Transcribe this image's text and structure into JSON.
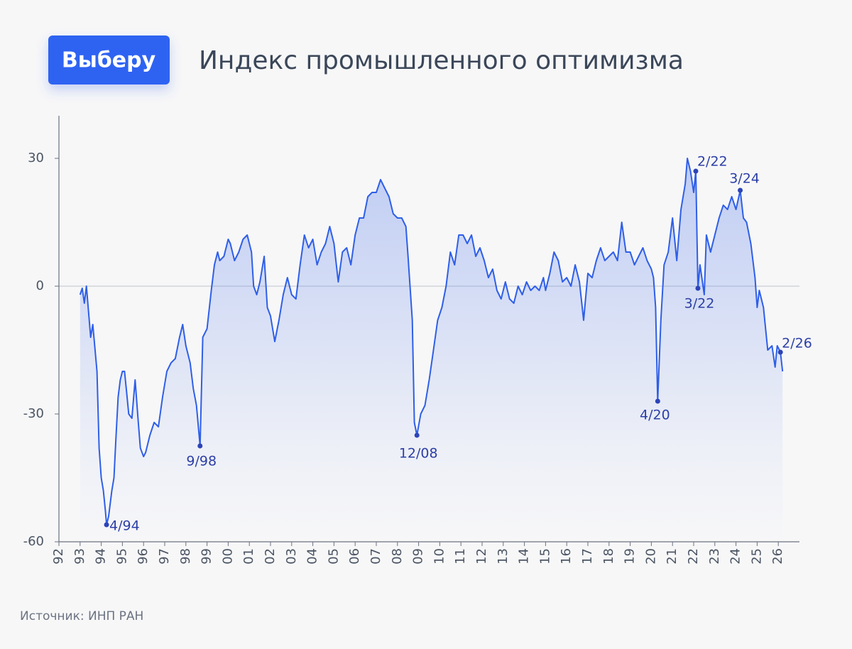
{
  "brand": "Выберу",
  "source": "Источник: ИНП РАН",
  "chart_data": {
    "type": "line",
    "title": "Индекс промышленного оптимизма",
    "color": "#2f5fe8",
    "grid_zero": true,
    "xlim": [
      1992,
      2027
    ],
    "ylim": [
      -60,
      40
    ],
    "yticks": [
      -60,
      -30,
      0,
      30
    ],
    "xticks": [
      {
        "value": 1992,
        "label": "92"
      },
      {
        "value": 1993,
        "label": "93"
      },
      {
        "value": 1994,
        "label": "94"
      },
      {
        "value": 1995,
        "label": "95"
      },
      {
        "value": 1996,
        "label": "96"
      },
      {
        "value": 1997,
        "label": "97"
      },
      {
        "value": 1998,
        "label": "98"
      },
      {
        "value": 1999,
        "label": "99"
      },
      {
        "value": 2000,
        "label": "00"
      },
      {
        "value": 2001,
        "label": "01"
      },
      {
        "value": 2002,
        "label": "02"
      },
      {
        "value": 2003,
        "label": "03"
      },
      {
        "value": 2004,
        "label": "04"
      },
      {
        "value": 2005,
        "label": "05"
      },
      {
        "value": 2006,
        "label": "06"
      },
      {
        "value": 2007,
        "label": "07"
      },
      {
        "value": 2008,
        "label": "08"
      },
      {
        "value": 2009,
        "label": "09"
      },
      {
        "value": 2010,
        "label": "10"
      },
      {
        "value": 2011,
        "label": "11"
      },
      {
        "value": 2012,
        "label": "12"
      },
      {
        "value": 2013,
        "label": "13"
      },
      {
        "value": 2014,
        "label": "14"
      },
      {
        "value": 2015,
        "label": "15"
      },
      {
        "value": 2016,
        "label": "16"
      },
      {
        "value": 2017,
        "label": "17"
      },
      {
        "value": 2018,
        "label": "18"
      },
      {
        "value": 2019,
        "label": "19"
      },
      {
        "value": 2020,
        "label": "20"
      },
      {
        "value": 2021,
        "label": "21"
      },
      {
        "value": 2022,
        "label": "22"
      },
      {
        "value": 2023,
        "label": "23"
      },
      {
        "value": 2024,
        "label": "24"
      },
      {
        "value": 2025,
        "label": "25"
      },
      {
        "value": 2026,
        "label": "26"
      }
    ],
    "x": [
      1993.0,
      1993.1,
      1993.2,
      1993.3,
      1993.5,
      1993.6,
      1993.8,
      1993.9,
      1994.0,
      1994.1,
      1994.2,
      1994.25,
      1994.35,
      1994.5,
      1994.6,
      1994.7,
      1994.8,
      1994.9,
      1995.0,
      1995.1,
      1995.2,
      1995.3,
      1995.45,
      1995.6,
      1995.75,
      1995.85,
      1996.0,
      1996.1,
      1996.3,
      1996.5,
      1996.7,
      1996.9,
      1997.1,
      1997.3,
      1997.5,
      1997.7,
      1997.85,
      1998.0,
      1998.2,
      1998.35,
      1998.5,
      1998.67,
      1998.8,
      1999.0,
      1999.2,
      1999.35,
      1999.5,
      1999.6,
      1999.8,
      2000.0,
      2000.1,
      2000.3,
      2000.5,
      2000.7,
      2000.9,
      2001.1,
      2001.2,
      2001.35,
      2001.5,
      2001.7,
      2001.85,
      2002.0,
      2002.2,
      2002.4,
      2002.6,
      2002.8,
      2003.0,
      2003.2,
      2003.4,
      2003.6,
      2003.8,
      2004.0,
      2004.2,
      2004.4,
      2004.6,
      2004.8,
      2005.0,
      2005.2,
      2005.4,
      2005.6,
      2005.8,
      2006.0,
      2006.2,
      2006.4,
      2006.6,
      2006.8,
      2007.0,
      2007.2,
      2007.4,
      2007.6,
      2007.8,
      2008.0,
      2008.2,
      2008.4,
      2008.5,
      2008.7,
      2008.8,
      2008.92,
      2009.1,
      2009.3,
      2009.5,
      2009.7,
      2009.9,
      2010.1,
      2010.3,
      2010.5,
      2010.7,
      2010.9,
      2011.1,
      2011.3,
      2011.5,
      2011.7,
      2011.9,
      2012.1,
      2012.3,
      2012.5,
      2012.7,
      2012.9,
      2013.1,
      2013.3,
      2013.5,
      2013.7,
      2013.9,
      2014.1,
      2014.3,
      2014.5,
      2014.7,
      2014.9,
      2015.0,
      2015.2,
      2015.4,
      2015.6,
      2015.8,
      2016.0,
      2016.2,
      2016.4,
      2016.6,
      2016.8,
      2017.0,
      2017.2,
      2017.4,
      2017.6,
      2017.8,
      2018.0,
      2018.2,
      2018.4,
      2018.6,
      2018.8,
      2019.0,
      2019.2,
      2019.4,
      2019.6,
      2019.8,
      2020.0,
      2020.1,
      2020.2,
      2020.3,
      2020.45,
      2020.6,
      2020.8,
      2021.0,
      2021.2,
      2021.4,
      2021.6,
      2021.7,
      2021.85,
      2022.0,
      2022.1,
      2022.2,
      2022.3,
      2022.5,
      2022.6,
      2022.8,
      2023.0,
      2023.2,
      2023.4,
      2023.6,
      2023.8,
      2024.0,
      2024.2,
      2024.35,
      2024.5,
      2024.7,
      2024.9,
      2025.0,
      2025.1,
      2025.3,
      2025.5,
      2025.7,
      2025.85,
      2025.95,
      2026.1,
      2026.2
    ],
    "values": [
      -2,
      -0.5,
      -4,
      0,
      -12,
      -9,
      -20,
      -38,
      -45,
      -48,
      -53,
      -56,
      -54,
      -48,
      -45,
      -35,
      -26,
      -22,
      -20,
      -20,
      -25,
      -30,
      -31,
      -22,
      -32,
      -38,
      -40,
      -39,
      -35,
      -32,
      -33,
      -26,
      -20,
      -18,
      -17,
      -12,
      -9,
      -14,
      -18,
      -24,
      -28,
      -37.5,
      -12,
      -10,
      -1,
      5,
      8,
      6,
      7,
      11,
      10,
      6,
      8,
      11,
      12,
      8,
      0,
      -2,
      1,
      7,
      -5,
      -7,
      -13,
      -8,
      -2,
      2,
      -2,
      -3,
      5,
      12,
      9,
      11,
      5,
      8,
      10,
      14,
      10,
      1,
      8,
      9,
      5,
      12,
      16,
      16,
      21,
      22,
      22,
      25,
      23,
      21,
      17,
      16,
      16,
      14,
      7,
      -8,
      -32,
      -35,
      -30,
      -28,
      -22,
      -15,
      -8,
      -5,
      0,
      8,
      5,
      12,
      12,
      10,
      12,
      7,
      9,
      6,
      2,
      4,
      -1,
      -3,
      1,
      -3,
      -4,
      0,
      -2,
      1,
      -1,
      0,
      -1,
      2,
      -1,
      3,
      8,
      6,
      1,
      2,
      0,
      5,
      1,
      -8,
      3,
      2,
      6,
      9,
      6,
      7,
      8,
      6,
      15,
      8,
      8,
      5,
      7,
      9,
      6,
      4,
      2,
      -5,
      -27,
      -8,
      5,
      8,
      16,
      6,
      18,
      24,
      30,
      27,
      22,
      27,
      -0.5,
      5,
      -2,
      12,
      8,
      12,
      16,
      19,
      18,
      21,
      18,
      22.5,
      16,
      15,
      10,
      2,
      -5,
      -1,
      -5,
      -15,
      -14,
      -19,
      -14,
      -15.5,
      -20
    ],
    "annotations": [
      {
        "label": "4/94",
        "x": 1994.25,
        "y": -56
      },
      {
        "label": "9/98",
        "x": 1998.67,
        "y": -37.5
      },
      {
        "label": "12/08",
        "x": 2008.92,
        "y": -35
      },
      {
        "label": "4/20",
        "x": 2020.3,
        "y": -27
      },
      {
        "label": "2/22",
        "x": 2022.1,
        "y": 27
      },
      {
        "label": "3/22",
        "x": 2022.2,
        "y": -0.5
      },
      {
        "label": "3/24",
        "x": 2024.2,
        "y": 22.5
      },
      {
        "label": "2/26",
        "x": 2026.1,
        "y": -15.5
      }
    ]
  }
}
